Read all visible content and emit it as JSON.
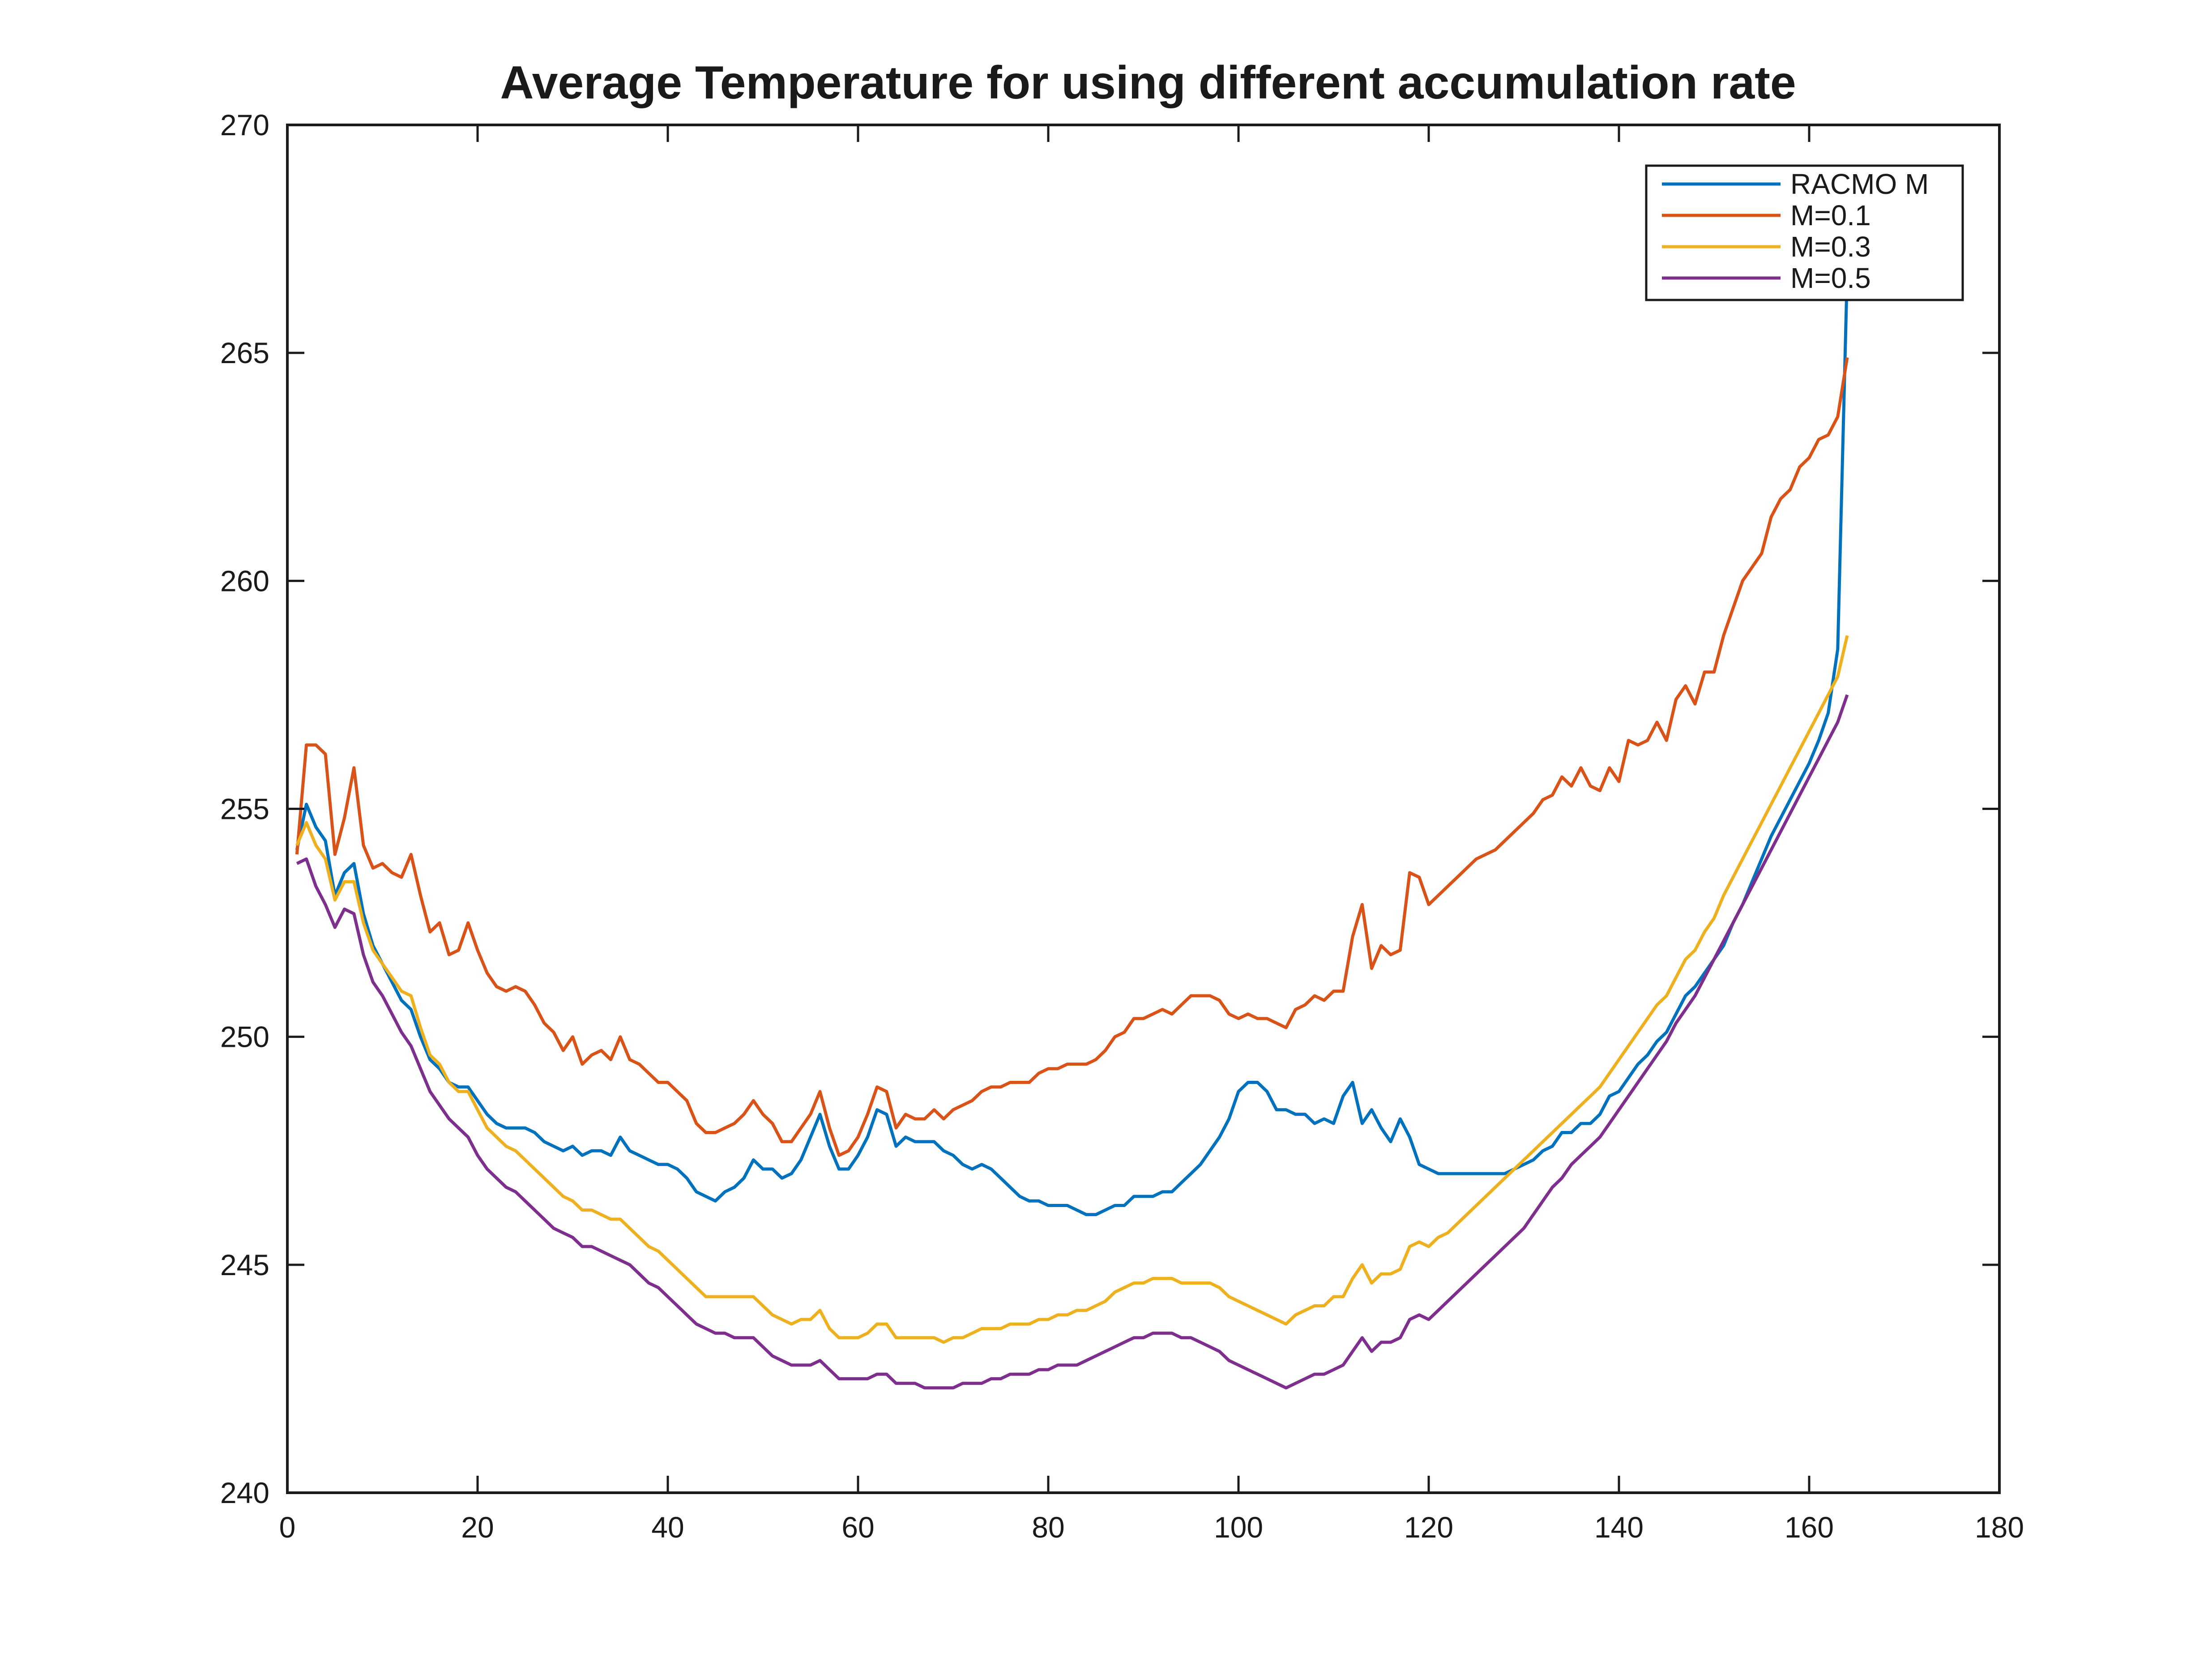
{
  "chart_data": {
    "type": "line",
    "title": "Average Temperature for using different accumulation rate",
    "xlabel": "",
    "ylabel": "",
    "xlim": [
      0,
      180
    ],
    "ylim": [
      240,
      270
    ],
    "xticks": [
      "0",
      "20",
      "40",
      "60",
      "80",
      "100",
      "120",
      "140",
      "160",
      "180"
    ],
    "yticks": [
      "240",
      "245",
      "250",
      "255",
      "260",
      "265",
      "270"
    ],
    "grid": false,
    "legend_position": "top-right",
    "x": [
      1,
      2,
      3,
      4,
      5,
      6,
      7,
      8,
      9,
      10,
      11,
      12,
      13,
      14,
      15,
      16,
      17,
      18,
      19,
      20,
      21,
      22,
      23,
      24,
      25,
      26,
      27,
      28,
      29,
      30,
      31,
      32,
      33,
      34,
      35,
      36,
      37,
      38,
      39,
      40,
      41,
      42,
      43,
      44,
      45,
      46,
      47,
      48,
      49,
      50,
      51,
      52,
      53,
      54,
      55,
      56,
      57,
      58,
      59,
      60,
      61,
      62,
      63,
      64,
      65,
      66,
      67,
      68,
      69,
      70,
      71,
      72,
      73,
      74,
      75,
      76,
      77,
      78,
      79,
      80,
      81,
      82,
      83,
      84,
      85,
      86,
      87,
      88,
      89,
      90,
      91,
      92,
      93,
      94,
      95,
      96,
      97,
      98,
      99,
      100,
      101,
      102,
      103,
      104,
      105,
      106,
      107,
      108,
      109,
      110,
      111,
      112,
      113,
      114,
      115,
      116,
      117,
      118,
      119,
      120,
      121,
      122,
      123,
      124,
      125,
      126,
      127,
      128,
      129,
      130,
      131,
      132,
      133,
      134,
      135,
      136,
      137,
      138,
      139,
      140,
      141,
      142,
      143,
      144,
      145,
      146,
      147,
      148,
      149,
      150,
      151,
      152,
      153,
      154,
      155,
      156,
      157,
      158,
      159,
      160,
      161,
      162,
      163,
      164
    ],
    "series": [
      {
        "name": "RACMO M",
        "color": "#0072bd",
        "values": [
          254.1,
          255.1,
          254.6,
          254.3,
          253.1,
          253.6,
          253.8,
          252.7,
          252.0,
          251.6,
          251.2,
          250.8,
          250.6,
          250.0,
          249.5,
          249.3,
          249.0,
          248.9,
          248.9,
          248.6,
          248.3,
          248.1,
          248.0,
          248.0,
          248.0,
          247.9,
          247.7,
          247.6,
          247.5,
          247.6,
          247.4,
          247.5,
          247.5,
          247.4,
          247.8,
          247.5,
          247.4,
          247.3,
          247.2,
          247.2,
          247.1,
          246.9,
          246.6,
          246.5,
          246.4,
          246.6,
          246.7,
          246.9,
          247.3,
          247.1,
          247.1,
          246.9,
          247.0,
          247.3,
          247.8,
          248.3,
          247.6,
          247.1,
          247.1,
          247.4,
          247.8,
          248.4,
          248.3,
          247.6,
          247.8,
          247.7,
          247.7,
          247.7,
          247.5,
          247.4,
          247.2,
          247.1,
          247.2,
          247.1,
          246.9,
          246.7,
          246.5,
          246.4,
          246.4,
          246.3,
          246.3,
          246.3,
          246.2,
          246.1,
          246.1,
          246.2,
          246.3,
          246.3,
          246.5,
          246.5,
          246.5,
          246.6,
          246.6,
          246.8,
          247.0,
          247.2,
          247.5,
          247.8,
          248.2,
          248.8,
          249.0,
          249.0,
          248.8,
          248.4,
          248.4,
          248.3,
          248.3,
          248.1,
          248.2,
          248.1,
          248.7,
          249.0,
          248.1,
          248.4,
          248.0,
          247.7,
          248.2,
          247.8,
          247.2,
          247.1,
          247.0,
          247.0,
          247.0,
          247.0,
          247.0,
          247.0,
          247.0,
          247.0,
          247.1,
          247.2,
          247.3,
          247.5,
          247.6,
          247.9,
          247.9,
          248.1,
          248.1,
          248.3,
          248.7,
          248.8,
          249.1,
          249.4,
          249.6,
          249.9,
          250.1,
          250.5,
          250.9,
          251.1,
          251.4,
          251.7,
          252.0,
          252.5,
          252.9,
          253.4,
          253.9,
          254.4,
          254.8,
          255.2,
          255.6,
          256.0,
          256.5,
          257.1,
          258.5,
          266.8
        ]
      },
      {
        "name": "M=0.1",
        "color": "#d95319",
        "values": [
          254.0,
          256.4,
          256.4,
          256.2,
          254.0,
          254.8,
          255.9,
          254.2,
          253.7,
          253.8,
          253.6,
          253.5,
          254.0,
          253.1,
          252.3,
          252.5,
          251.8,
          251.9,
          252.5,
          251.9,
          251.4,
          251.1,
          251.0,
          251.1,
          251.0,
          250.7,
          250.3,
          250.1,
          249.7,
          250.0,
          249.4,
          249.6,
          249.7,
          249.5,
          250.0,
          249.5,
          249.4,
          249.2,
          249.0,
          249.0,
          248.8,
          248.6,
          248.1,
          247.9,
          247.9,
          248.0,
          248.1,
          248.3,
          248.6,
          248.3,
          248.1,
          247.7,
          247.7,
          248.0,
          248.3,
          248.8,
          248.0,
          247.4,
          247.5,
          247.8,
          248.3,
          248.9,
          248.8,
          248.0,
          248.3,
          248.2,
          248.2,
          248.4,
          248.2,
          248.4,
          248.5,
          248.6,
          248.8,
          248.9,
          248.9,
          249.0,
          249.0,
          249.0,
          249.2,
          249.3,
          249.3,
          249.4,
          249.4,
          249.4,
          249.5,
          249.7,
          250.0,
          250.1,
          250.4,
          250.4,
          250.5,
          250.6,
          250.5,
          250.7,
          250.9,
          250.9,
          250.9,
          250.8,
          250.5,
          250.4,
          250.5,
          250.4,
          250.4,
          250.3,
          250.2,
          250.6,
          250.7,
          250.9,
          250.8,
          251.0,
          251.0,
          252.2,
          252.9,
          251.5,
          252.0,
          251.8,
          251.9,
          253.6,
          253.5,
          252.9,
          253.1,
          253.3,
          253.5,
          253.7,
          253.9,
          254.0,
          254.1,
          254.3,
          254.5,
          254.7,
          254.9,
          255.2,
          255.3,
          255.7,
          255.5,
          255.9,
          255.5,
          255.4,
          255.9,
          255.6,
          256.5,
          256.4,
          256.5,
          256.9,
          256.5,
          257.4,
          257.7,
          257.3,
          258.0,
          258.0,
          258.8,
          259.4,
          260.0,
          260.3,
          260.6,
          261.4,
          261.8,
          262.0,
          262.5,
          262.7,
          263.1,
          263.2,
          263.6,
          264.9
        ]
      },
      {
        "name": "M=0.3",
        "color": "#edb120",
        "values": [
          254.2,
          254.7,
          254.2,
          253.9,
          253.0,
          253.4,
          253.4,
          252.5,
          251.9,
          251.6,
          251.3,
          251.0,
          250.9,
          250.2,
          249.6,
          249.4,
          249.0,
          248.8,
          248.8,
          248.4,
          248.0,
          247.8,
          247.6,
          247.5,
          247.3,
          247.1,
          246.9,
          246.7,
          246.5,
          246.4,
          246.2,
          246.2,
          246.1,
          246.0,
          246.0,
          245.8,
          245.6,
          245.4,
          245.3,
          245.1,
          244.9,
          244.7,
          244.5,
          244.3,
          244.3,
          244.3,
          244.3,
          244.3,
          244.3,
          244.1,
          243.9,
          243.8,
          243.7,
          243.8,
          243.8,
          244.0,
          243.6,
          243.4,
          243.4,
          243.4,
          243.5,
          243.7,
          243.7,
          243.4,
          243.4,
          243.4,
          243.4,
          243.4,
          243.3,
          243.4,
          243.4,
          243.5,
          243.6,
          243.6,
          243.6,
          243.7,
          243.7,
          243.7,
          243.8,
          243.8,
          243.9,
          243.9,
          244.0,
          244.0,
          244.1,
          244.2,
          244.4,
          244.5,
          244.6,
          244.6,
          244.7,
          244.7,
          244.7,
          244.6,
          244.6,
          244.6,
          244.6,
          244.5,
          244.3,
          244.2,
          244.1,
          244.0,
          243.9,
          243.8,
          243.7,
          243.9,
          244.0,
          244.1,
          244.1,
          244.3,
          244.3,
          244.7,
          245.0,
          244.6,
          244.8,
          244.8,
          244.9,
          245.4,
          245.5,
          245.4,
          245.6,
          245.7,
          245.9,
          246.1,
          246.3,
          246.5,
          246.7,
          246.9,
          247.1,
          247.3,
          247.5,
          247.7,
          247.9,
          248.1,
          248.3,
          248.5,
          248.7,
          248.9,
          249.2,
          249.5,
          249.8,
          250.1,
          250.4,
          250.7,
          250.9,
          251.3,
          251.7,
          251.9,
          252.3,
          252.6,
          253.1,
          253.5,
          253.9,
          254.3,
          254.7,
          255.1,
          255.5,
          255.9,
          256.3,
          256.7,
          257.1,
          257.5,
          257.9,
          258.8
        ]
      },
      {
        "name": "M=0.5",
        "color": "#7e2f8e",
        "values": [
          253.8,
          253.9,
          253.3,
          252.9,
          252.4,
          252.8,
          252.7,
          251.8,
          251.2,
          250.9,
          250.5,
          250.1,
          249.8,
          249.3,
          248.8,
          248.5,
          248.2,
          248.0,
          247.8,
          247.4,
          247.1,
          246.9,
          246.7,
          246.6,
          246.4,
          246.2,
          246.0,
          245.8,
          245.7,
          245.6,
          245.4,
          245.4,
          245.3,
          245.2,
          245.1,
          245.0,
          244.8,
          244.6,
          244.5,
          244.3,
          244.1,
          243.9,
          243.7,
          243.6,
          243.5,
          243.5,
          243.4,
          243.4,
          243.4,
          243.2,
          243.0,
          242.9,
          242.8,
          242.8,
          242.8,
          242.9,
          242.7,
          242.5,
          242.5,
          242.5,
          242.5,
          242.6,
          242.6,
          242.4,
          242.4,
          242.4,
          242.3,
          242.3,
          242.3,
          242.3,
          242.4,
          242.4,
          242.4,
          242.5,
          242.5,
          242.6,
          242.6,
          242.6,
          242.7,
          242.7,
          242.8,
          242.8,
          242.8,
          242.9,
          243.0,
          243.1,
          243.2,
          243.3,
          243.4,
          243.4,
          243.5,
          243.5,
          243.5,
          243.4,
          243.4,
          243.3,
          243.2,
          243.1,
          242.9,
          242.8,
          242.7,
          242.6,
          242.5,
          242.4,
          242.3,
          242.4,
          242.5,
          242.6,
          242.6,
          242.7,
          242.8,
          243.1,
          243.4,
          243.1,
          243.3,
          243.3,
          243.4,
          243.8,
          243.9,
          243.8,
          244.0,
          244.2,
          244.4,
          244.6,
          244.8,
          245.0,
          245.2,
          245.4,
          245.6,
          245.8,
          246.1,
          246.4,
          246.7,
          246.9,
          247.2,
          247.4,
          247.6,
          247.8,
          248.1,
          248.4,
          248.7,
          249.0,
          249.3,
          249.6,
          249.9,
          250.3,
          250.6,
          250.9,
          251.3,
          251.7,
          252.1,
          252.5,
          252.9,
          253.3,
          253.7,
          254.1,
          254.5,
          254.9,
          255.3,
          255.7,
          256.1,
          256.5,
          256.9,
          257.5
        ]
      }
    ]
  }
}
